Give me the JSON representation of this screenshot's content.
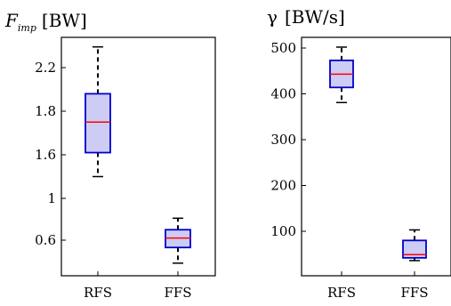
{
  "chart_data": [
    {
      "type": "box",
      "title": {
        "symbol": "F",
        "subscript": "imp",
        "unit": "[BW]"
      },
      "categories": [
        "RFS",
        "FFS"
      ],
      "yticks": [
        0.6,
        1,
        1.6,
        1.8,
        2.2
      ],
      "ytick_labels": [
        "0.6",
        "1",
        "1.6",
        "1.8",
        "2.2"
      ],
      "boxes": [
        {
          "category": "RFS",
          "whisker_low": 1.3,
          "q1": 1.61,
          "median": 1.75,
          "q3": 1.96,
          "whisker_high": 2.39
        },
        {
          "category": "FFS",
          "whisker_low": 0.38,
          "q1": 0.53,
          "median": 0.62,
          "q3": 0.7,
          "whisker_high": 0.81
        }
      ],
      "colors": {
        "box_fill": "#ccccf5",
        "box_edge": "#0000cc",
        "median": "#ff0000",
        "whisker": "#000000"
      }
    },
    {
      "type": "box",
      "title": {
        "symbol": "γ",
        "unit": "[BW/s]"
      },
      "categories": [
        "RFS",
        "FFS"
      ],
      "yticks": [
        100,
        200,
        300,
        400,
        500
      ],
      "ytick_labels": [
        "100",
        "200",
        "300",
        "400",
        "500"
      ],
      "boxes": [
        {
          "category": "RFS",
          "whisker_low": 381,
          "q1": 414,
          "median": 443,
          "q3": 473,
          "whisker_high": 502
        },
        {
          "category": "FFS",
          "whisker_low": 36,
          "q1": 42,
          "median": 49,
          "q3": 80,
          "whisker_high": 103
        }
      ],
      "colors": {
        "box_fill": "#ccccf5",
        "box_edge": "#0000cc",
        "median": "#ff0000",
        "whisker": "#000000"
      }
    }
  ]
}
